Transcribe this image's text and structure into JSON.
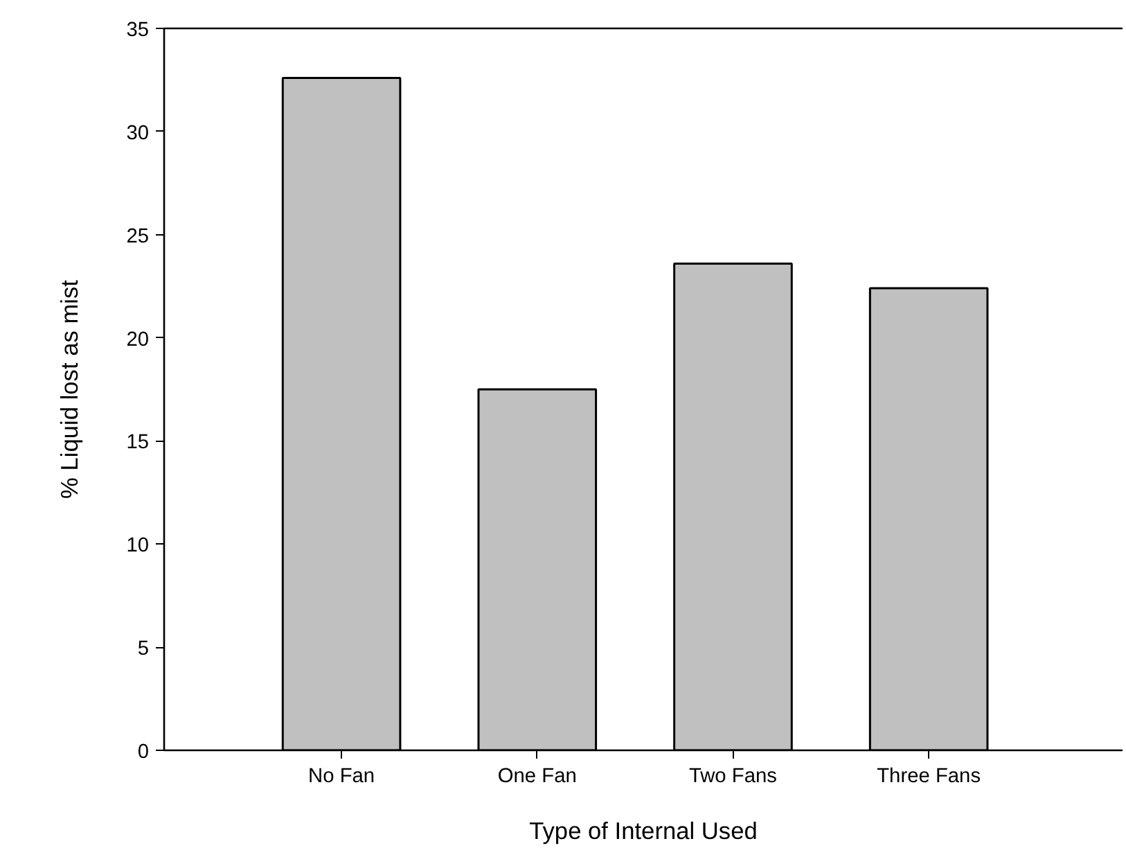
{
  "chart_data": {
    "type": "bar",
    "xlabel": "Type of Internal Used",
    "ylabel": "% Liquid lost as mist",
    "categories": [
      "No Fan",
      "One Fan",
      "Two Fans",
      "Three Fans"
    ],
    "values": [
      32.6,
      17.5,
      23.6,
      22.4
    ],
    "color": "#c0c0c0",
    "ylim": [
      0,
      35
    ],
    "yticks": [
      0,
      5,
      10,
      15,
      20,
      25,
      30,
      35
    ],
    "grid": false
  }
}
